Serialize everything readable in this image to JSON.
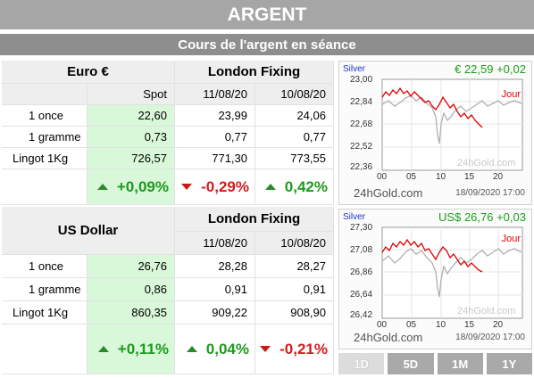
{
  "header": {
    "title": "ARGENT",
    "subtitle": "Cours de l'argent en séance"
  },
  "euro": {
    "currency_label": "Euro €",
    "fixing_label": "London Fixing",
    "col_spot": "Spot",
    "col_d1": "11/08/20",
    "col_d2": "10/08/20",
    "rows": [
      {
        "label": "1 once",
        "spot": "22,60",
        "d1": "23,99",
        "d2": "24,06"
      },
      {
        "label": "1 gramme",
        "spot": "0,73",
        "d1": "0,77",
        "d2": "0,77"
      },
      {
        "label": "Lingot 1Kg",
        "spot": "726,57",
        "d1": "771,30",
        "d2": "773,55"
      }
    ],
    "changes": {
      "spot": "+0,09%",
      "d1": "-0,29%",
      "d2": "0,42%"
    }
  },
  "usd": {
    "currency_label": "US Dollar",
    "fixing_label": "London Fixing",
    "col_d1": "11/08/20",
    "col_d2": "10/08/20",
    "rows": [
      {
        "label": "1 once",
        "spot": "26,76",
        "d1": "28,28",
        "d2": "28,27"
      },
      {
        "label": "1 gramme",
        "spot": "0,86",
        "d1": "0,91",
        "d2": "0,91"
      },
      {
        "label": "Lingot 1Kg",
        "spot": "860,35",
        "d1": "909,22",
        "d2": "908,90"
      }
    ],
    "changes": {
      "spot": "+0,11%",
      "d1": "0,04%",
      "d2": "-0,21%"
    }
  },
  "chart_eur": {
    "name": "Silver",
    "price": "€  22,59 +0,02",
    "jour": "Jour",
    "watermark": "24hGold.com",
    "brand": "24hGold.com",
    "date": "18/09/2020  17:00",
    "y_ticks": [
      "23,00",
      "22,84",
      "22,68",
      "22,52",
      "22,36"
    ],
    "x_ticks": [
      "00",
      "05",
      "10",
      "15",
      "20"
    ]
  },
  "chart_usd": {
    "name": "Silver",
    "price": "US$  26,76 +0,03",
    "jour": "Jour",
    "watermark": "24hGold.com",
    "brand": "24hGold.com",
    "date": "18/09/2020  17:00",
    "y_ticks": [
      "27,30",
      "27,08",
      "26,86",
      "26,64",
      "26,42"
    ],
    "x_ticks": [
      "00",
      "05",
      "10",
      "15",
      "20"
    ]
  },
  "periods": [
    "1D",
    "5D",
    "1M",
    "1Y"
  ],
  "colors": {
    "up": "#1e9a1e",
    "down": "#d41c1c",
    "spot_bg": "#d9f7d9",
    "title_bg": "#a6a6a6"
  }
}
